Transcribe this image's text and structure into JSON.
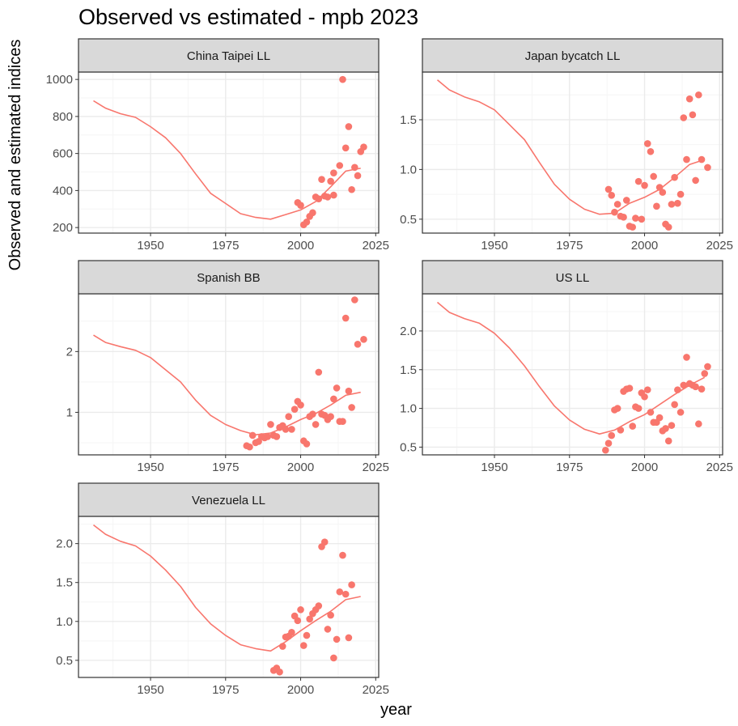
{
  "title": "Observed vs estimated - mpb 2023",
  "ylabel": "Observed and estimated indices",
  "xlabel": "year",
  "colors": {
    "series": "#F8766D",
    "grid_major": "#ebebeb",
    "grid_minor": "#f5f5f5",
    "strip_bg": "#d9d9d9",
    "border": "#333333"
  },
  "chart_data": [
    {
      "type": "scatter",
      "panel": "China Taipei LL",
      "xlim": [
        1926,
        2026
      ],
      "ylim": [
        170,
        1040
      ],
      "x_ticks": [
        1950,
        1975,
        2000,
        2025
      ],
      "y_ticks": [
        200,
        400,
        600,
        800,
        1000
      ],
      "y_tick_labels": [
        "200",
        "400",
        "600",
        "800",
        "1000"
      ],
      "estimated": [
        [
          1931,
          885
        ],
        [
          1935,
          845
        ],
        [
          1940,
          815
        ],
        [
          1945,
          795
        ],
        [
          1950,
          745
        ],
        [
          1955,
          685
        ],
        [
          1960,
          600
        ],
        [
          1965,
          490
        ],
        [
          1970,
          385
        ],
        [
          1975,
          330
        ],
        [
          1980,
          275
        ],
        [
          1985,
          255
        ],
        [
          1990,
          245
        ],
        [
          1995,
          270
        ],
        [
          2000,
          295
        ],
        [
          2005,
          340
        ],
        [
          2010,
          420
        ],
        [
          2015,
          505
        ],
        [
          2020,
          520
        ]
      ],
      "observed": [
        [
          1999,
          335
        ],
        [
          2000,
          320
        ],
        [
          2001,
          215
        ],
        [
          2002,
          230
        ],
        [
          2003,
          260
        ],
        [
          2004,
          280
        ],
        [
          2005,
          365
        ],
        [
          2006,
          355
        ],
        [
          2007,
          460
        ],
        [
          2008,
          370
        ],
        [
          2009,
          365
        ],
        [
          2010,
          450
        ],
        [
          2011,
          495
        ],
        [
          2011,
          375
        ],
        [
          2013,
          535
        ],
        [
          2014,
          1000
        ],
        [
          2015,
          630
        ],
        [
          2016,
          745
        ],
        [
          2017,
          405
        ],
        [
          2018,
          525
        ],
        [
          2019,
          480
        ],
        [
          2020,
          610
        ],
        [
          2021,
          635
        ]
      ]
    },
    {
      "type": "scatter",
      "panel": "Japan bycatch LL",
      "xlim": [
        1926,
        2026
      ],
      "ylim": [
        0.36,
        1.98
      ],
      "x_ticks": [
        1950,
        1975,
        2000,
        2025
      ],
      "y_ticks": [
        0.5,
        1.0,
        1.5
      ],
      "y_tick_labels": [
        "0.5",
        "1.0",
        "1.5"
      ],
      "estimated": [
        [
          1931,
          1.9
        ],
        [
          1935,
          1.8
        ],
        [
          1940,
          1.73
        ],
        [
          1945,
          1.68
        ],
        [
          1950,
          1.6
        ],
        [
          1955,
          1.45
        ],
        [
          1960,
          1.3
        ],
        [
          1965,
          1.07
        ],
        [
          1970,
          0.85
        ],
        [
          1975,
          0.7
        ],
        [
          1980,
          0.6
        ],
        [
          1985,
          0.55
        ],
        [
          1990,
          0.56
        ],
        [
          1995,
          0.66
        ],
        [
          2000,
          0.72
        ],
        [
          2005,
          0.8
        ],
        [
          2010,
          0.92
        ],
        [
          2015,
          1.05
        ],
        [
          2020,
          1.1
        ]
      ],
      "observed": [
        [
          1988,
          0.8
        ],
        [
          1989,
          0.74
        ],
        [
          1990,
          0.57
        ],
        [
          1991,
          0.65
        ],
        [
          1992,
          0.53
        ],
        [
          1993,
          0.52
        ],
        [
          1994,
          0.69
        ],
        [
          1995,
          0.43
        ],
        [
          1996,
          0.42
        ],
        [
          1997,
          0.51
        ],
        [
          1998,
          0.88
        ],
        [
          1999,
          0.5
        ],
        [
          2000,
          0.84
        ],
        [
          2001,
          1.26
        ],
        [
          2002,
          1.18
        ],
        [
          2003,
          0.93
        ],
        [
          2004,
          0.63
        ],
        [
          2005,
          0.82
        ],
        [
          2006,
          0.77
        ],
        [
          2007,
          0.45
        ],
        [
          2008,
          0.42
        ],
        [
          2009,
          0.65
        ],
        [
          2010,
          0.92
        ],
        [
          2011,
          0.66
        ],
        [
          2012,
          0.75
        ],
        [
          2013,
          1.52
        ],
        [
          2014,
          1.1
        ],
        [
          2015,
          1.71
        ],
        [
          2016,
          1.55
        ],
        [
          2017,
          0.89
        ],
        [
          2018,
          1.75
        ],
        [
          2019,
          1.1
        ],
        [
          2021,
          1.02
        ]
      ]
    },
    {
      "type": "scatter",
      "panel": "Spanish BB",
      "xlim": [
        1926,
        2026
      ],
      "ylim": [
        0.3,
        2.95
      ],
      "x_ticks": [
        1950,
        1975,
        2000,
        2025
      ],
      "y_ticks": [
        1,
        2
      ],
      "y_tick_labels": [
        "1",
        "2"
      ],
      "estimated": [
        [
          1931,
          2.27
        ],
        [
          1935,
          2.15
        ],
        [
          1940,
          2.08
        ],
        [
          1945,
          2.02
        ],
        [
          1950,
          1.9
        ],
        [
          1955,
          1.7
        ],
        [
          1960,
          1.5
        ],
        [
          1965,
          1.2
        ],
        [
          1970,
          0.95
        ],
        [
          1975,
          0.8
        ],
        [
          1980,
          0.7
        ],
        [
          1985,
          0.63
        ],
        [
          1990,
          0.66
        ],
        [
          1995,
          0.76
        ],
        [
          2000,
          0.88
        ],
        [
          2005,
          0.98
        ],
        [
          2010,
          1.12
        ],
        [
          2015,
          1.28
        ],
        [
          2020,
          1.33
        ]
      ],
      "observed": [
        [
          1982,
          0.45
        ],
        [
          1983,
          0.43
        ],
        [
          1984,
          0.62
        ],
        [
          1985,
          0.5
        ],
        [
          1986,
          0.52
        ],
        [
          1987,
          0.6
        ],
        [
          1988,
          0.58
        ],
        [
          1989,
          0.6
        ],
        [
          1990,
          0.8
        ],
        [
          1991,
          0.62
        ],
        [
          1992,
          0.6
        ],
        [
          1993,
          0.75
        ],
        [
          1994,
          0.78
        ],
        [
          1995,
          0.72
        ],
        [
          1996,
          0.93
        ],
        [
          1997,
          0.72
        ],
        [
          1998,
          1.05
        ],
        [
          1999,
          1.18
        ],
        [
          2000,
          1.12
        ],
        [
          2001,
          0.53
        ],
        [
          2002,
          0.48
        ],
        [
          2003,
          0.93
        ],
        [
          2004,
          0.97
        ],
        [
          2005,
          0.8
        ],
        [
          2006,
          1.66
        ],
        [
          2007,
          0.97
        ],
        [
          2008,
          0.95
        ],
        [
          2009,
          0.88
        ],
        [
          2010,
          0.93
        ],
        [
          2011,
          1.22
        ],
        [
          2012,
          1.4
        ],
        [
          2013,
          0.85
        ],
        [
          2014,
          0.85
        ],
        [
          2015,
          2.55
        ],
        [
          2016,
          1.35
        ],
        [
          2017,
          1.08
        ],
        [
          2018,
          2.85
        ],
        [
          2019,
          2.12
        ],
        [
          2021,
          2.2
        ]
      ]
    },
    {
      "type": "scatter",
      "panel": "US LL",
      "xlim": [
        1926,
        2026
      ],
      "ylim": [
        0.4,
        2.48
      ],
      "x_ticks": [
        1950,
        1975,
        2000,
        2025
      ],
      "y_ticks": [
        0.5,
        1.0,
        1.5,
        2.0
      ],
      "y_tick_labels": [
        "0.5",
        "1.0",
        "1.5",
        "2.0"
      ],
      "estimated": [
        [
          1931,
          2.37
        ],
        [
          1935,
          2.24
        ],
        [
          1940,
          2.16
        ],
        [
          1945,
          2.1
        ],
        [
          1950,
          1.97
        ],
        [
          1955,
          1.78
        ],
        [
          1960,
          1.55
        ],
        [
          1965,
          1.28
        ],
        [
          1970,
          1.03
        ],
        [
          1975,
          0.85
        ],
        [
          1980,
          0.73
        ],
        [
          1985,
          0.67
        ],
        [
          1990,
          0.72
        ],
        [
          1995,
          0.83
        ],
        [
          2000,
          0.92
        ],
        [
          2005,
          1.05
        ],
        [
          2010,
          1.18
        ],
        [
          2015,
          1.3
        ],
        [
          2020,
          1.4
        ]
      ],
      "observed": [
        [
          1987,
          0.46
        ],
        [
          1988,
          0.55
        ],
        [
          1989,
          0.65
        ],
        [
          1990,
          0.98
        ],
        [
          1991,
          1.0
        ],
        [
          1992,
          0.72
        ],
        [
          1993,
          1.22
        ],
        [
          1994,
          1.25
        ],
        [
          1995,
          1.26
        ],
        [
          1996,
          0.77
        ],
        [
          1997,
          1.02
        ],
        [
          1998,
          1.0
        ],
        [
          1999,
          1.2
        ],
        [
          2000,
          1.15
        ],
        [
          2001,
          1.24
        ],
        [
          2002,
          0.95
        ],
        [
          2003,
          0.82
        ],
        [
          2004,
          0.82
        ],
        [
          2005,
          0.88
        ],
        [
          2006,
          0.71
        ],
        [
          2007,
          0.74
        ],
        [
          2008,
          0.58
        ],
        [
          2009,
          0.78
        ],
        [
          2010,
          1.05
        ],
        [
          2011,
          1.24
        ],
        [
          2012,
          0.95
        ],
        [
          2013,
          1.3
        ],
        [
          2014,
          1.66
        ],
        [
          2015,
          1.32
        ],
        [
          2016,
          1.3
        ],
        [
          2017,
          1.28
        ],
        [
          2018,
          0.8
        ],
        [
          2019,
          1.25
        ],
        [
          2020,
          1.45
        ],
        [
          2021,
          1.54
        ]
      ]
    },
    {
      "type": "scatter",
      "panel": "Venezuela LL",
      "xlim": [
        1926,
        2026
      ],
      "ylim": [
        0.28,
        2.35
      ],
      "x_ticks": [
        1950,
        1975,
        2000,
        2025
      ],
      "y_ticks": [
        0.5,
        1.0,
        1.5,
        2.0
      ],
      "y_tick_labels": [
        "0.5",
        "1.0",
        "1.5",
        "2.0"
      ],
      "estimated": [
        [
          1931,
          2.24
        ],
        [
          1935,
          2.12
        ],
        [
          1940,
          2.03
        ],
        [
          1945,
          1.97
        ],
        [
          1950,
          1.84
        ],
        [
          1955,
          1.66
        ],
        [
          1960,
          1.45
        ],
        [
          1965,
          1.18
        ],
        [
          1970,
          0.97
        ],
        [
          1975,
          0.82
        ],
        [
          1980,
          0.7
        ],
        [
          1985,
          0.65
        ],
        [
          1990,
          0.62
        ],
        [
          1995,
          0.74
        ],
        [
          2000,
          0.88
        ],
        [
          2005,
          1.01
        ],
        [
          2010,
          1.13
        ],
        [
          2015,
          1.28
        ],
        [
          2020,
          1.32
        ]
      ],
      "observed": [
        [
          1991,
          0.37
        ],
        [
          1992,
          0.4
        ],
        [
          1993,
          0.35
        ],
        [
          1994,
          0.68
        ],
        [
          1995,
          0.8
        ],
        [
          1996,
          0.81
        ],
        [
          1997,
          0.86
        ],
        [
          1998,
          1.07
        ],
        [
          1999,
          1.01
        ],
        [
          2000,
          1.15
        ],
        [
          2001,
          0.69
        ],
        [
          2002,
          0.82
        ],
        [
          2003,
          1.03
        ],
        [
          2004,
          1.1
        ],
        [
          2005,
          1.15
        ],
        [
          2006,
          1.2
        ],
        [
          2007,
          1.96
        ],
        [
          2008,
          2.02
        ],
        [
          2009,
          0.9
        ],
        [
          2010,
          1.08
        ],
        [
          2011,
          0.53
        ],
        [
          2012,
          0.77
        ],
        [
          2013,
          1.38
        ],
        [
          2014,
          1.85
        ],
        [
          2015,
          1.35
        ],
        [
          2016,
          0.79
        ],
        [
          2017,
          1.47
        ]
      ]
    }
  ]
}
